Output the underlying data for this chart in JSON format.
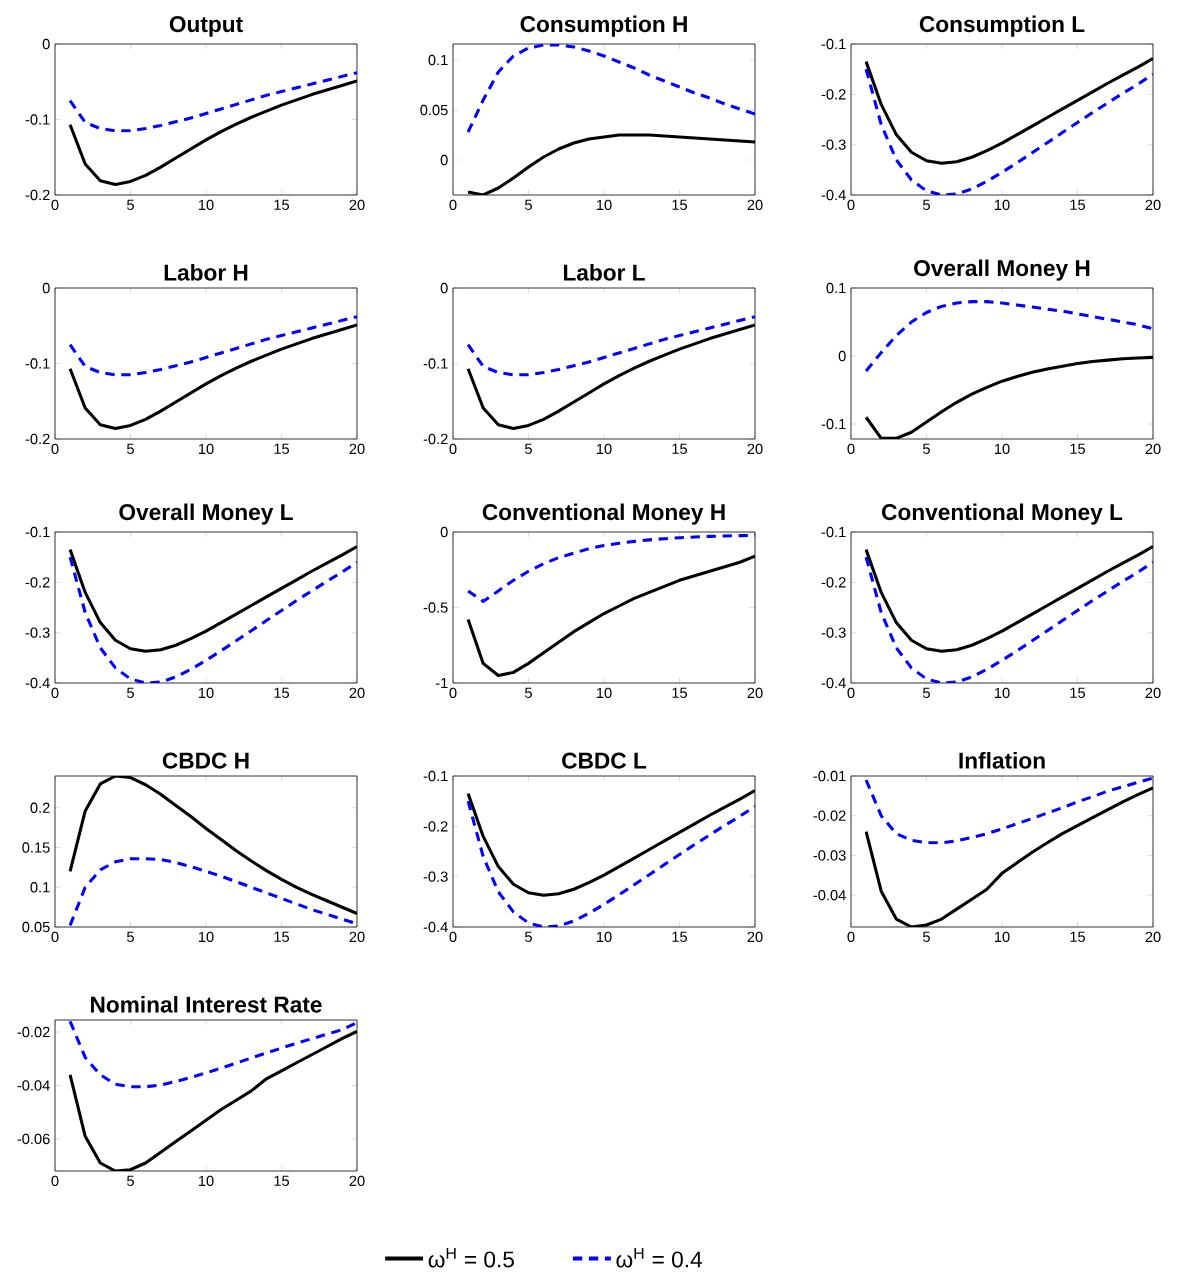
{
  "chart_data": [
    {
      "type": "line",
      "title": "Output",
      "x": [
        1,
        2,
        3,
        4,
        5,
        6,
        7,
        8,
        9,
        10,
        11,
        12,
        13,
        14,
        15,
        16,
        17,
        18,
        19,
        20
      ],
      "xlim": [
        0,
        20
      ],
      "xticks": [
        0,
        5,
        10,
        15,
        20
      ],
      "ylim": [
        -0.2,
        0
      ],
      "yticks": [
        -0.2,
        -0.1,
        0
      ],
      "series": [
        {
          "color": "#000000",
          "line_style": "solid",
          "values": [
            -0.107,
            -0.159,
            -0.181,
            -0.186,
            -0.182,
            -0.174,
            -0.163,
            -0.151,
            -0.139,
            -0.127,
            -0.116,
            -0.106,
            -0.097,
            -0.089,
            -0.081,
            -0.074,
            -0.067,
            -0.061,
            -0.055,
            -0.049
          ]
        },
        {
          "color": "#0000ff",
          "line_style": "dashed",
          "values": [
            -0.075,
            -0.104,
            -0.112,
            -0.115,
            -0.115,
            -0.112,
            -0.108,
            -0.103,
            -0.098,
            -0.092,
            -0.086,
            -0.08,
            -0.074,
            -0.068,
            -0.063,
            -0.058,
            -0.053,
            -0.048,
            -0.043,
            -0.038
          ]
        }
      ]
    },
    {
      "type": "line",
      "title": "Consumption H",
      "x": [
        1,
        2,
        3,
        4,
        5,
        6,
        7,
        8,
        9,
        10,
        11,
        12,
        13,
        14,
        15,
        16,
        17,
        18,
        19,
        20
      ],
      "xlim": [
        0,
        20
      ],
      "xticks": [
        0,
        5,
        10,
        15,
        20
      ],
      "ylim": [
        -0.035,
        0.116
      ],
      "yticks": [
        0,
        0.05,
        0.1
      ],
      "series": [
        {
          "color": "#000000",
          "line_style": "solid",
          "values": [
            -0.032,
            -0.035,
            -0.028,
            -0.018,
            -0.007,
            0.003,
            0.011,
            0.017,
            0.021,
            0.023,
            0.025,
            0.025,
            0.025,
            0.024,
            0.023,
            0.022,
            0.021,
            0.02,
            0.019,
            0.018
          ]
        },
        {
          "color": "#0000ff",
          "line_style": "dashed",
          "values": [
            0.028,
            0.06,
            0.088,
            0.104,
            0.112,
            0.115,
            0.115,
            0.113,
            0.109,
            0.104,
            0.098,
            0.092,
            0.085,
            0.079,
            0.073,
            0.067,
            0.062,
            0.056,
            0.051,
            0.046
          ]
        }
      ]
    },
    {
      "type": "line",
      "title": "Consumption L",
      "x": [
        1,
        2,
        3,
        4,
        5,
        6,
        7,
        8,
        9,
        10,
        11,
        12,
        13,
        14,
        15,
        16,
        17,
        18,
        19,
        20
      ],
      "xlim": [
        0,
        20
      ],
      "xticks": [
        0,
        5,
        10,
        15,
        20
      ],
      "ylim": [
        -0.4,
        -0.1
      ],
      "yticks": [
        -0.4,
        -0.3,
        -0.2,
        -0.1
      ],
      "series": [
        {
          "color": "#000000",
          "line_style": "solid",
          "values": [
            -0.135,
            -0.22,
            -0.28,
            -0.315,
            -0.332,
            -0.337,
            -0.334,
            -0.325,
            -0.312,
            -0.297,
            -0.28,
            -0.263,
            -0.246,
            -0.229,
            -0.212,
            -0.195,
            -0.178,
            -0.162,
            -0.146,
            -0.129
          ]
        },
        {
          "color": "#0000ff",
          "line_style": "dashed",
          "values": [
            -0.15,
            -0.26,
            -0.33,
            -0.37,
            -0.392,
            -0.4,
            -0.398,
            -0.388,
            -0.373,
            -0.355,
            -0.336,
            -0.316,
            -0.296,
            -0.276,
            -0.256,
            -0.236,
            -0.217,
            -0.198,
            -0.18,
            -0.16
          ]
        }
      ]
    },
    {
      "type": "line",
      "title": "Labor H",
      "x": [
        1,
        2,
        3,
        4,
        5,
        6,
        7,
        8,
        9,
        10,
        11,
        12,
        13,
        14,
        15,
        16,
        17,
        18,
        19,
        20
      ],
      "xlim": [
        0,
        20
      ],
      "xticks": [
        0,
        5,
        10,
        15,
        20
      ],
      "ylim": [
        -0.2,
        0
      ],
      "yticks": [
        -0.2,
        -0.1,
        0
      ],
      "series": [
        {
          "color": "#000000",
          "line_style": "solid",
          "values": [
            -0.107,
            -0.159,
            -0.181,
            -0.186,
            -0.182,
            -0.174,
            -0.163,
            -0.151,
            -0.139,
            -0.127,
            -0.116,
            -0.106,
            -0.097,
            -0.089,
            -0.081,
            -0.074,
            -0.067,
            -0.061,
            -0.055,
            -0.049
          ]
        },
        {
          "color": "#0000ff",
          "line_style": "dashed",
          "values": [
            -0.075,
            -0.104,
            -0.112,
            -0.115,
            -0.115,
            -0.112,
            -0.108,
            -0.103,
            -0.098,
            -0.092,
            -0.086,
            -0.08,
            -0.074,
            -0.068,
            -0.063,
            -0.058,
            -0.053,
            -0.048,
            -0.043,
            -0.038
          ]
        }
      ]
    },
    {
      "type": "line",
      "title": "Labor L",
      "x": [
        1,
        2,
        3,
        4,
        5,
        6,
        7,
        8,
        9,
        10,
        11,
        12,
        13,
        14,
        15,
        16,
        17,
        18,
        19,
        20
      ],
      "xlim": [
        0,
        20
      ],
      "xticks": [
        0,
        5,
        10,
        15,
        20
      ],
      "ylim": [
        -0.2,
        0
      ],
      "yticks": [
        -0.2,
        -0.1,
        0
      ],
      "series": [
        {
          "color": "#000000",
          "line_style": "solid",
          "values": [
            -0.107,
            -0.159,
            -0.181,
            -0.186,
            -0.182,
            -0.174,
            -0.163,
            -0.151,
            -0.139,
            -0.127,
            -0.116,
            -0.106,
            -0.097,
            -0.089,
            -0.081,
            -0.074,
            -0.067,
            -0.061,
            -0.055,
            -0.049
          ]
        },
        {
          "color": "#0000ff",
          "line_style": "dashed",
          "values": [
            -0.075,
            -0.104,
            -0.112,
            -0.115,
            -0.115,
            -0.112,
            -0.108,
            -0.103,
            -0.098,
            -0.092,
            -0.086,
            -0.08,
            -0.074,
            -0.068,
            -0.063,
            -0.058,
            -0.053,
            -0.048,
            -0.043,
            -0.038
          ]
        }
      ]
    },
    {
      "type": "line",
      "title": "Overall Money H",
      "x": [
        1,
        2,
        3,
        4,
        5,
        6,
        7,
        8,
        9,
        10,
        11,
        12,
        13,
        14,
        15,
        16,
        17,
        18,
        19,
        20
      ],
      "xlim": [
        0,
        20
      ],
      "xticks": [
        0,
        5,
        10,
        15,
        20
      ],
      "ylim": [
        -0.122,
        0.1
      ],
      "yticks": [
        -0.1,
        0,
        0.1
      ],
      "series": [
        {
          "color": "#000000",
          "line_style": "solid",
          "values": [
            -0.09,
            -0.121,
            -0.121,
            -0.112,
            -0.097,
            -0.082,
            -0.068,
            -0.056,
            -0.046,
            -0.037,
            -0.03,
            -0.024,
            -0.019,
            -0.015,
            -0.011,
            -0.008,
            -0.006,
            -0.004,
            -0.003,
            -0.002
          ]
        },
        {
          "color": "#0000ff",
          "line_style": "dashed",
          "values": [
            -0.022,
            0.005,
            0.03,
            0.05,
            0.064,
            0.073,
            0.078,
            0.08,
            0.08,
            0.078,
            0.075,
            0.072,
            0.069,
            0.066,
            0.062,
            0.058,
            0.054,
            0.05,
            0.046,
            0.04
          ]
        }
      ]
    },
    {
      "type": "line",
      "title": "Overall Money L",
      "x": [
        1,
        2,
        3,
        4,
        5,
        6,
        7,
        8,
        9,
        10,
        11,
        12,
        13,
        14,
        15,
        16,
        17,
        18,
        19,
        20
      ],
      "xlim": [
        0,
        20
      ],
      "xticks": [
        0,
        5,
        10,
        15,
        20
      ],
      "ylim": [
        -0.4,
        -0.1
      ],
      "yticks": [
        -0.4,
        -0.3,
        -0.2,
        -0.1
      ],
      "series": [
        {
          "color": "#000000",
          "line_style": "solid",
          "values": [
            -0.135,
            -0.22,
            -0.28,
            -0.315,
            -0.332,
            -0.337,
            -0.334,
            -0.325,
            -0.312,
            -0.297,
            -0.28,
            -0.263,
            -0.246,
            -0.229,
            -0.212,
            -0.195,
            -0.178,
            -0.162,
            -0.146,
            -0.129
          ]
        },
        {
          "color": "#0000ff",
          "line_style": "dashed",
          "values": [
            -0.15,
            -0.26,
            -0.33,
            -0.37,
            -0.392,
            -0.4,
            -0.398,
            -0.388,
            -0.373,
            -0.355,
            -0.336,
            -0.316,
            -0.296,
            -0.276,
            -0.256,
            -0.236,
            -0.217,
            -0.198,
            -0.18,
            -0.16
          ]
        }
      ]
    },
    {
      "type": "line",
      "title": "Conventional Money H",
      "x": [
        1,
        2,
        3,
        4,
        5,
        6,
        7,
        8,
        9,
        10,
        11,
        12,
        13,
        14,
        15,
        16,
        17,
        18,
        19,
        20
      ],
      "xlim": [
        0,
        20
      ],
      "xticks": [
        0,
        5,
        10,
        15,
        20
      ],
      "ylim": [
        -1,
        0
      ],
      "yticks": [
        -1,
        -0.5,
        0
      ],
      "series": [
        {
          "color": "#000000",
          "line_style": "solid",
          "values": [
            -0.58,
            -0.87,
            -0.95,
            -0.93,
            -0.87,
            -0.8,
            -0.73,
            -0.66,
            -0.6,
            -0.54,
            -0.49,
            -0.44,
            -0.4,
            -0.36,
            -0.32,
            -0.29,
            -0.26,
            -0.23,
            -0.2,
            -0.16
          ]
        },
        {
          "color": "#0000ff",
          "line_style": "dashed",
          "values": [
            -0.39,
            -0.46,
            -0.39,
            -0.32,
            -0.26,
            -0.21,
            -0.17,
            -0.14,
            -0.11,
            -0.09,
            -0.075,
            -0.062,
            -0.052,
            -0.044,
            -0.038,
            -0.033,
            -0.029,
            -0.026,
            -0.024,
            -0.022
          ]
        }
      ]
    },
    {
      "type": "line",
      "title": "Conventional Money L",
      "x": [
        1,
        2,
        3,
        4,
        5,
        6,
        7,
        8,
        9,
        10,
        11,
        12,
        13,
        14,
        15,
        16,
        17,
        18,
        19,
        20
      ],
      "xlim": [
        0,
        20
      ],
      "xticks": [
        0,
        5,
        10,
        15,
        20
      ],
      "ylim": [
        -0.4,
        -0.1
      ],
      "yticks": [
        -0.4,
        -0.3,
        -0.2,
        -0.1
      ],
      "series": [
        {
          "color": "#000000",
          "line_style": "solid",
          "values": [
            -0.135,
            -0.22,
            -0.28,
            -0.315,
            -0.332,
            -0.337,
            -0.334,
            -0.325,
            -0.312,
            -0.297,
            -0.28,
            -0.263,
            -0.246,
            -0.229,
            -0.212,
            -0.195,
            -0.178,
            -0.162,
            -0.146,
            -0.129
          ]
        },
        {
          "color": "#0000ff",
          "line_style": "dashed",
          "values": [
            -0.15,
            -0.26,
            -0.33,
            -0.37,
            -0.392,
            -0.4,
            -0.398,
            -0.388,
            -0.373,
            -0.355,
            -0.336,
            -0.316,
            -0.296,
            -0.276,
            -0.256,
            -0.236,
            -0.217,
            -0.198,
            -0.18,
            -0.16
          ]
        }
      ]
    },
    {
      "type": "line",
      "title": "CBDC H",
      "x": [
        1,
        2,
        3,
        4,
        5,
        6,
        7,
        8,
        9,
        10,
        11,
        12,
        13,
        14,
        15,
        16,
        17,
        18,
        19,
        20
      ],
      "xlim": [
        0,
        20
      ],
      "xticks": [
        0,
        5,
        10,
        15,
        20
      ],
      "ylim": [
        0.05,
        0.24
      ],
      "yticks": [
        0.05,
        0.1,
        0.15,
        0.2
      ],
      "series": [
        {
          "color": "#000000",
          "line_style": "solid",
          "values": [
            0.12,
            0.196,
            0.23,
            0.24,
            0.238,
            0.229,
            0.217,
            0.203,
            0.189,
            0.174,
            0.16,
            0.146,
            0.133,
            0.121,
            0.11,
            0.1,
            0.091,
            0.083,
            0.075,
            0.067
          ]
        },
        {
          "color": "#0000ff",
          "line_style": "dashed",
          "values": [
            0.052,
            0.1,
            0.122,
            0.132,
            0.136,
            0.136,
            0.135,
            0.131,
            0.126,
            0.12,
            0.114,
            0.107,
            0.1,
            0.093,
            0.086,
            0.079,
            0.072,
            0.066,
            0.06,
            0.054
          ]
        }
      ]
    },
    {
      "type": "line",
      "title": "CBDC L",
      "x": [
        1,
        2,
        3,
        4,
        5,
        6,
        7,
        8,
        9,
        10,
        11,
        12,
        13,
        14,
        15,
        16,
        17,
        18,
        19,
        20
      ],
      "xlim": [
        0,
        20
      ],
      "xticks": [
        0,
        5,
        10,
        15,
        20
      ],
      "ylim": [
        -0.4,
        -0.1
      ],
      "yticks": [
        -0.4,
        -0.3,
        -0.2,
        -0.1
      ],
      "series": [
        {
          "color": "#000000",
          "line_style": "solid",
          "values": [
            -0.135,
            -0.22,
            -0.28,
            -0.315,
            -0.332,
            -0.337,
            -0.334,
            -0.325,
            -0.312,
            -0.297,
            -0.28,
            -0.263,
            -0.246,
            -0.229,
            -0.212,
            -0.195,
            -0.178,
            -0.162,
            -0.146,
            -0.129
          ]
        },
        {
          "color": "#0000ff",
          "line_style": "dashed",
          "values": [
            -0.15,
            -0.26,
            -0.33,
            -0.37,
            -0.392,
            -0.4,
            -0.398,
            -0.388,
            -0.373,
            -0.355,
            -0.336,
            -0.316,
            -0.296,
            -0.276,
            -0.256,
            -0.236,
            -0.217,
            -0.198,
            -0.18,
            -0.16
          ]
        }
      ]
    },
    {
      "type": "line",
      "title": "Inflation",
      "x": [
        1,
        2,
        3,
        4,
        5,
        6,
        7,
        8,
        9,
        10,
        11,
        12,
        13,
        14,
        15,
        16,
        17,
        18,
        19,
        20
      ],
      "xlim": [
        0,
        20
      ],
      "xticks": [
        0,
        5,
        10,
        15,
        20
      ],
      "ylim": [
        -0.048,
        -0.01
      ],
      "yticks": [
        -0.04,
        -0.03,
        -0.02,
        -0.01
      ],
      "series": [
        {
          "color": "#000000",
          "line_style": "solid",
          "values": [
            -0.024,
            -0.039,
            -0.046,
            -0.048,
            -0.0475,
            -0.046,
            -0.0435,
            -0.041,
            -0.0385,
            -0.0345,
            -0.0318,
            -0.0292,
            -0.0268,
            -0.0245,
            -0.0225,
            -0.0205,
            -0.0185,
            -0.0165,
            -0.0147,
            -0.013
          ]
        },
        {
          "color": "#0000ff",
          "line_style": "dashed",
          "values": [
            -0.011,
            -0.02,
            -0.0245,
            -0.0262,
            -0.0268,
            -0.0268,
            -0.0263,
            -0.0255,
            -0.0245,
            -0.0233,
            -0.022,
            -0.0207,
            -0.0193,
            -0.018,
            -0.0165,
            -0.0152,
            -0.0138,
            -0.0127,
            -0.0116,
            -0.0105
          ]
        }
      ]
    },
    {
      "type": "line",
      "title": "Nominal Interest Rate",
      "x": [
        1,
        2,
        3,
        4,
        5,
        6,
        7,
        8,
        9,
        10,
        11,
        12,
        13,
        14,
        15,
        16,
        17,
        18,
        19,
        20
      ],
      "xlim": [
        0,
        20
      ],
      "xticks": [
        0,
        5,
        10,
        15,
        20
      ],
      "ylim": [
        -0.072,
        -0.0155
      ],
      "yticks": [
        -0.06,
        -0.04,
        -0.02
      ],
      "legend": "bottom",
      "series": [
        {
          "name": "ω$^{H}$ = 0.5",
          "color": "#000000",
          "line_style": "solid",
          "values": [
            -0.036,
            -0.059,
            -0.069,
            -0.072,
            -0.0715,
            -0.069,
            -0.065,
            -0.061,
            -0.057,
            -0.053,
            -0.049,
            -0.0455,
            -0.042,
            -0.0375,
            -0.0345,
            -0.0315,
            -0.0285,
            -0.0255,
            -0.0225,
            -0.0198
          ]
        },
        {
          "name": "ω$^{H}$ = 0.4",
          "color": "#0000ff",
          "line_style": "dashed",
          "values": [
            -0.016,
            -0.0295,
            -0.036,
            -0.0395,
            -0.0405,
            -0.0405,
            -0.0398,
            -0.0385,
            -0.037,
            -0.0353,
            -0.0335,
            -0.0316,
            -0.0297,
            -0.0278,
            -0.026,
            -0.0242,
            -0.0225,
            -0.0208,
            -0.0192,
            -0.0165
          ]
        }
      ]
    }
  ]
}
